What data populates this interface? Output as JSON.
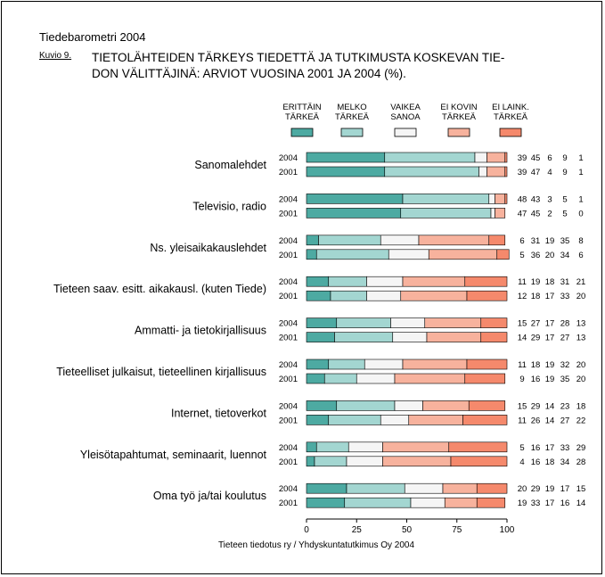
{
  "header": {
    "publication": "Tiedebarometri 2004",
    "figure_label": "Kuvio 9.",
    "title_line1": "TIETOLÄHTEIDEN TÄRKEYS TIEDETTÄ JA TUTKIMUSTA KOSKEVAN TIE-",
    "title_line2": "DON VÄLITTÄJINÄ: ARVIOT VUOSINA 2001 JA 2004 (%)."
  },
  "footer": {
    "source": "Tieteen tiedotus ry / Yhdyskuntatutkimus Oy 2004"
  },
  "colors": {
    "erittain": "#4daaa2",
    "melko": "#a3d6d1",
    "vaikea": "#f5f5f5",
    "eikovin": "#f7b29d",
    "eilaink": "#f5896c",
    "stroke": "#000000"
  },
  "chart_data": {
    "type": "bar",
    "orientation": "horizontal",
    "stacked": true,
    "title": "TIETOLÄHTEIDEN TÄRKEYS TIEDETTÄ JA TUTKIMUSTA KOSKEVAN TIEDON VÄLITTÄJINÄ: ARVIOT VUOSINA 2001 JA 2004 (%).",
    "xlim": [
      0,
      100
    ],
    "xticks": [
      0,
      25,
      50,
      75,
      100
    ],
    "legend_position": "top",
    "legend": [
      {
        "key": "erittain",
        "line1": "ERITTÄIN",
        "line2": "TÄRKEÄ"
      },
      {
        "key": "melko",
        "line1": "MELKO",
        "line2": "TÄRKEÄ"
      },
      {
        "key": "vaikea",
        "line1": "VAIKEA",
        "line2": "SANOA"
      },
      {
        "key": "eikovin",
        "line1": "EI KOVIN",
        "line2": "TÄRKEÄ"
      },
      {
        "key": "eilaink",
        "line1": "EI LAINK.",
        "line2": "TÄRKEÄ"
      }
    ],
    "categories": [
      {
        "label": "Sanomalehdet",
        "rows": [
          {
            "year": "2004",
            "values": [
              39,
              45,
              6,
              9,
              1
            ]
          },
          {
            "year": "2001",
            "values": [
              39,
              47,
              4,
              9,
              1
            ]
          }
        ]
      },
      {
        "label": "Televisio, radio",
        "rows": [
          {
            "year": "2004",
            "values": [
              48,
              43,
              3,
              5,
              1
            ]
          },
          {
            "year": "2001",
            "values": [
              47,
              45,
              2,
              5,
              0
            ]
          }
        ]
      },
      {
        "label": "Ns. yleisaikakauslehdet",
        "rows": [
          {
            "year": "2004",
            "values": [
              6,
              31,
              19,
              35,
              8
            ]
          },
          {
            "year": "2001",
            "values": [
              5,
              36,
              20,
              34,
              6
            ]
          }
        ]
      },
      {
        "label": "Tieteen saav. esitt. aikakausl. (kuten Tiede)",
        "rows": [
          {
            "year": "2004",
            "values": [
              11,
              19,
              18,
              31,
              21
            ]
          },
          {
            "year": "2001",
            "values": [
              12,
              18,
              17,
              33,
              20
            ]
          }
        ]
      },
      {
        "label": "Ammatti- ja tietokirjallisuus",
        "rows": [
          {
            "year": "2004",
            "values": [
              15,
              27,
              17,
              28,
              13
            ]
          },
          {
            "year": "2001",
            "values": [
              14,
              29,
              17,
              27,
              13
            ]
          }
        ]
      },
      {
        "label": "Tieteelliset julkaisut, tieteellinen kirjallisuus",
        "rows": [
          {
            "year": "2004",
            "values": [
              11,
              18,
              19,
              32,
              20
            ]
          },
          {
            "year": "2001",
            "values": [
              9,
              16,
              19,
              35,
              20
            ]
          }
        ]
      },
      {
        "label": "Internet, tietoverkot",
        "rows": [
          {
            "year": "2004",
            "values": [
              15,
              29,
              14,
              23,
              18
            ]
          },
          {
            "year": "2001",
            "values": [
              11,
              26,
              14,
              27,
              22
            ]
          }
        ]
      },
      {
        "label": "Yleisötapahtumat, seminaarit, luennot",
        "rows": [
          {
            "year": "2004",
            "values": [
              5,
              16,
              17,
              33,
              29
            ]
          },
          {
            "year": "2001",
            "values": [
              4,
              16,
              18,
              34,
              28
            ]
          }
        ]
      },
      {
        "label": "Oma työ ja/tai koulutus",
        "rows": [
          {
            "year": "2004",
            "values": [
              20,
              29,
              19,
              17,
              15
            ]
          },
          {
            "year": "2001",
            "values": [
              19,
              33,
              17,
              16,
              14
            ]
          }
        ]
      }
    ]
  }
}
